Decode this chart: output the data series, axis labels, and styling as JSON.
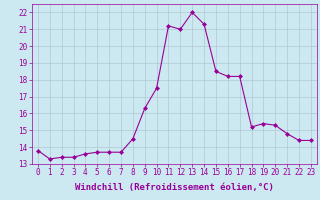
{
  "x": [
    0,
    1,
    2,
    3,
    4,
    5,
    6,
    7,
    8,
    9,
    10,
    11,
    12,
    13,
    14,
    15,
    16,
    17,
    18,
    19,
    20,
    21,
    22,
    23
  ],
  "y": [
    13.8,
    13.3,
    13.4,
    13.4,
    13.6,
    13.7,
    13.7,
    13.7,
    14.5,
    16.3,
    17.5,
    21.2,
    21.0,
    22.0,
    21.3,
    18.5,
    18.2,
    18.2,
    15.2,
    15.4,
    15.3,
    14.8,
    14.4,
    14.4
  ],
  "line_color": "#990099",
  "marker": "D",
  "markersize": 2.0,
  "linewidth": 0.8,
  "xlabel": "Windchill (Refroidissement éolien,°C)",
  "ylabel": "",
  "xlim": [
    -0.5,
    23.5
  ],
  "ylim": [
    13,
    22.5
  ],
  "yticks": [
    13,
    14,
    15,
    16,
    17,
    18,
    19,
    20,
    21,
    22
  ],
  "xticks": [
    0,
    1,
    2,
    3,
    4,
    5,
    6,
    7,
    8,
    9,
    10,
    11,
    12,
    13,
    14,
    15,
    16,
    17,
    18,
    19,
    20,
    21,
    22,
    23
  ],
  "background_color": "#cce8f0",
  "grid_color": "#b0c8d4",
  "tick_color": "#990099",
  "label_color": "#990099",
  "xlabel_fontsize": 6.5,
  "tick_fontsize": 5.5
}
